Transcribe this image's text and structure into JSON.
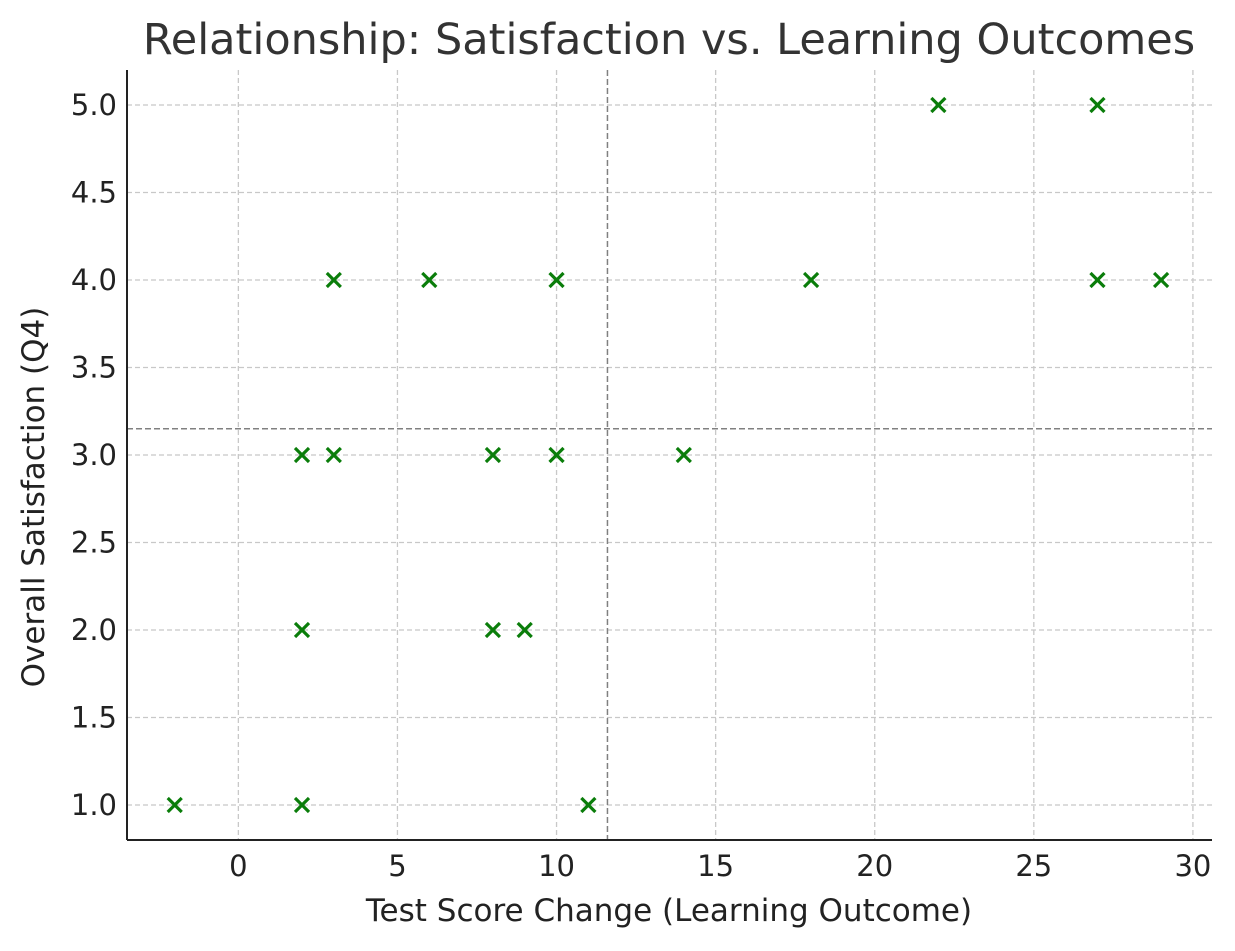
{
  "chart_data": {
    "type": "scatter",
    "title": "Relationship: Satisfaction vs. Learning Outcomes",
    "xlabel": "Test Score Change (Learning Outcome)",
    "ylabel": "Overall Satisfaction (Q4)",
    "xlim": [
      -3.5,
      30.6
    ],
    "ylim": [
      0.8,
      5.2
    ],
    "xticks": [
      0,
      5,
      10,
      15,
      20,
      25,
      30
    ],
    "yticks": [
      1.0,
      1.5,
      2.0,
      2.5,
      3.0,
      3.5,
      4.0,
      4.5,
      5.0
    ],
    "x_tick_labels": [
      "0",
      "5",
      "10",
      "15",
      "20",
      "25",
      "30"
    ],
    "y_tick_labels": [
      "1.0",
      "1.5",
      "2.0",
      "2.5",
      "3.0",
      "3.5",
      "4.0",
      "4.5",
      "5.0"
    ],
    "grid": true,
    "marker": "x",
    "marker_color": "#0a7d0a",
    "reference_lines": {
      "x_mean": 11.6,
      "y_mean": 3.15,
      "color": "#808080",
      "style": "dashed"
    },
    "points": [
      {
        "x": -2,
        "y": 1.0
      },
      {
        "x": 2,
        "y": 1.0
      },
      {
        "x": 11,
        "y": 1.0
      },
      {
        "x": 2,
        "y": 2.0
      },
      {
        "x": 8,
        "y": 2.0
      },
      {
        "x": 9,
        "y": 2.0
      },
      {
        "x": 2,
        "y": 3.0
      },
      {
        "x": 3,
        "y": 3.0
      },
      {
        "x": 8,
        "y": 3.0
      },
      {
        "x": 10,
        "y": 3.0
      },
      {
        "x": 14,
        "y": 3.0
      },
      {
        "x": 3,
        "y": 4.0
      },
      {
        "x": 6,
        "y": 4.0
      },
      {
        "x": 10,
        "y": 4.0
      },
      {
        "x": 18,
        "y": 4.0
      },
      {
        "x": 27,
        "y": 4.0
      },
      {
        "x": 29,
        "y": 4.0
      },
      {
        "x": 22,
        "y": 5.0
      },
      {
        "x": 27,
        "y": 5.0
      }
    ]
  }
}
